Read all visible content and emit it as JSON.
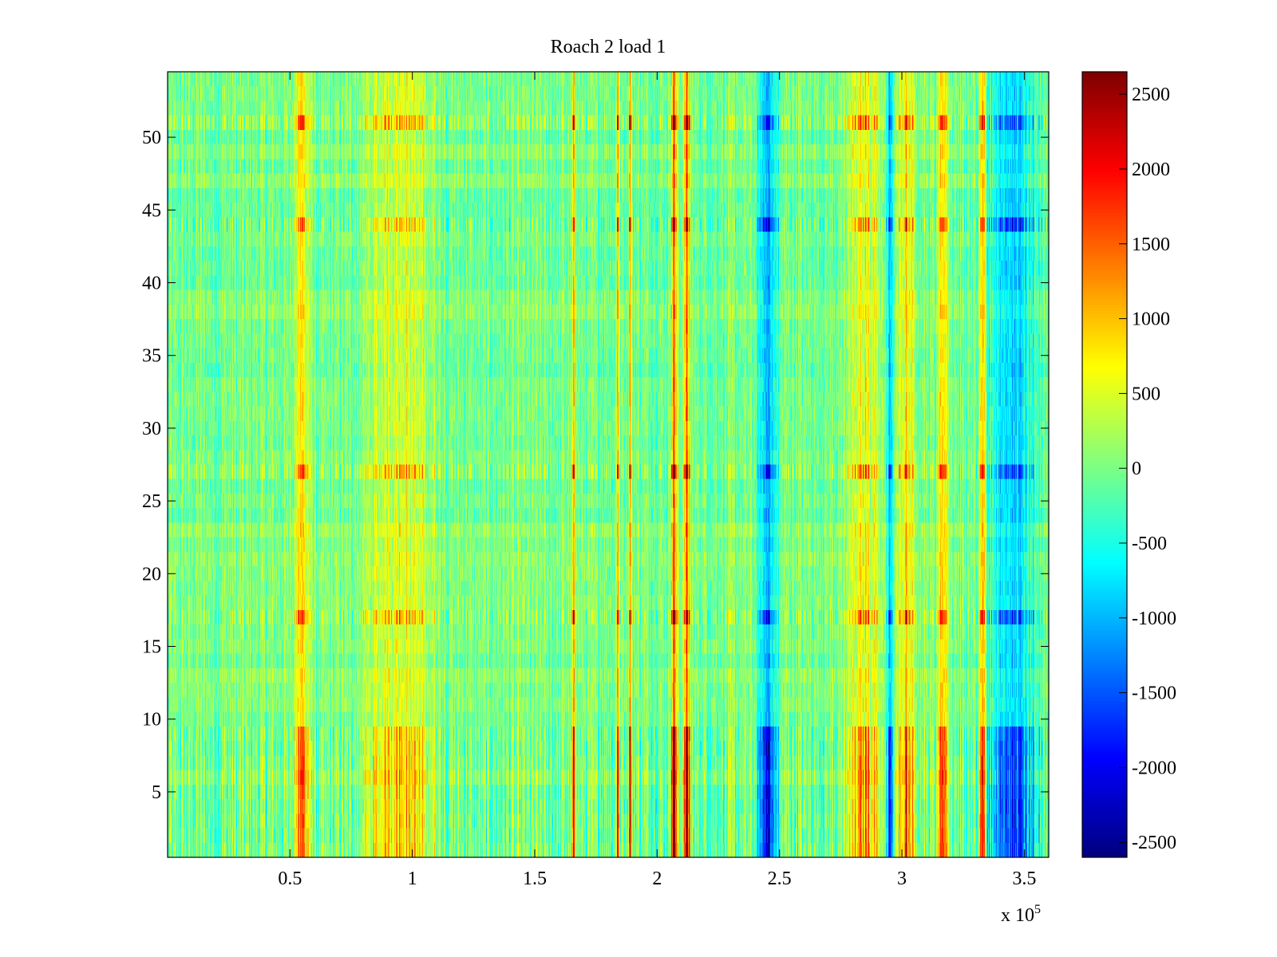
{
  "chart_data": {
    "type": "heatmap",
    "title": "Roach 2 load 1",
    "xlabel": "",
    "ylabel": "",
    "x_exponent_label": "x 10",
    "x_exponent_power": "5",
    "xlim": [
      0,
      3.6
    ],
    "ylim": [
      0.5,
      54.5
    ],
    "rows": 54,
    "x_ticks": [
      {
        "value": 0.5,
        "label": "0.5"
      },
      {
        "value": 1,
        "label": "1"
      },
      {
        "value": 1.5,
        "label": "1.5"
      },
      {
        "value": 2,
        "label": "2"
      },
      {
        "value": 2.5,
        "label": "2.5"
      },
      {
        "value": 3,
        "label": "3"
      },
      {
        "value": 3.5,
        "label": "3.5"
      }
    ],
    "y_ticks": [
      {
        "value": 5,
        "label": "5"
      },
      {
        "value": 10,
        "label": "10"
      },
      {
        "value": 15,
        "label": "15"
      },
      {
        "value": 20,
        "label": "20"
      },
      {
        "value": 25,
        "label": "25"
      },
      {
        "value": 30,
        "label": "30"
      },
      {
        "value": 35,
        "label": "35"
      },
      {
        "value": 40,
        "label": "40"
      },
      {
        "value": 45,
        "label": "45"
      },
      {
        "value": 50,
        "label": "50"
      }
    ],
    "colorbar": {
      "colormap": "jet",
      "range": [
        -2600,
        2650
      ],
      "ticks": [
        {
          "value": 2500,
          "label": "2500"
        },
        {
          "value": 2000,
          "label": "2000"
        },
        {
          "value": 1500,
          "label": "1500"
        },
        {
          "value": 1000,
          "label": "1000"
        },
        {
          "value": 500,
          "label": "500"
        },
        {
          "value": 0,
          "label": "0"
        },
        {
          "value": -500,
          "label": "-500"
        },
        {
          "value": -1000,
          "label": "-1000"
        },
        {
          "value": -1500,
          "label": "-1500"
        },
        {
          "value": -2000,
          "label": "-2000"
        },
        {
          "value": -2500,
          "label": "-2500"
        }
      ]
    },
    "column_features": [
      {
        "x": 0.55,
        "width": 0.05,
        "value": 1400
      },
      {
        "x": 0.95,
        "width": 0.2,
        "value": 1000
      },
      {
        "x": 1.66,
        "width": 0.01,
        "value": 1800
      },
      {
        "x": 1.84,
        "width": 0.01,
        "value": 2100
      },
      {
        "x": 1.89,
        "width": 0.01,
        "value": 2200
      },
      {
        "x": 2.07,
        "width": 0.02,
        "value": 2500
      },
      {
        "x": 2.12,
        "width": 0.02,
        "value": 2500
      },
      {
        "x": 2.45,
        "width": 0.06,
        "value": -1800
      },
      {
        "x": 2.85,
        "width": 0.1,
        "value": 1200
      },
      {
        "x": 2.95,
        "width": 0.02,
        "value": -1500
      },
      {
        "x": 3.02,
        "width": 0.05,
        "value": 1500
      },
      {
        "x": 3.17,
        "width": 0.03,
        "value": 1700
      },
      {
        "x": 3.33,
        "width": 0.02,
        "value": 2000
      },
      {
        "x": 3.45,
        "width": 0.15,
        "value": -1400
      }
    ],
    "row_features": [
      {
        "rows": [
          3,
          7,
          17,
          27,
          44,
          51
        ],
        "effect": "amplified contrast"
      },
      {
        "rows": [
          1,
          2,
          4,
          5,
          6,
          8,
          9
        ],
        "effect": "strong banding"
      }
    ]
  }
}
